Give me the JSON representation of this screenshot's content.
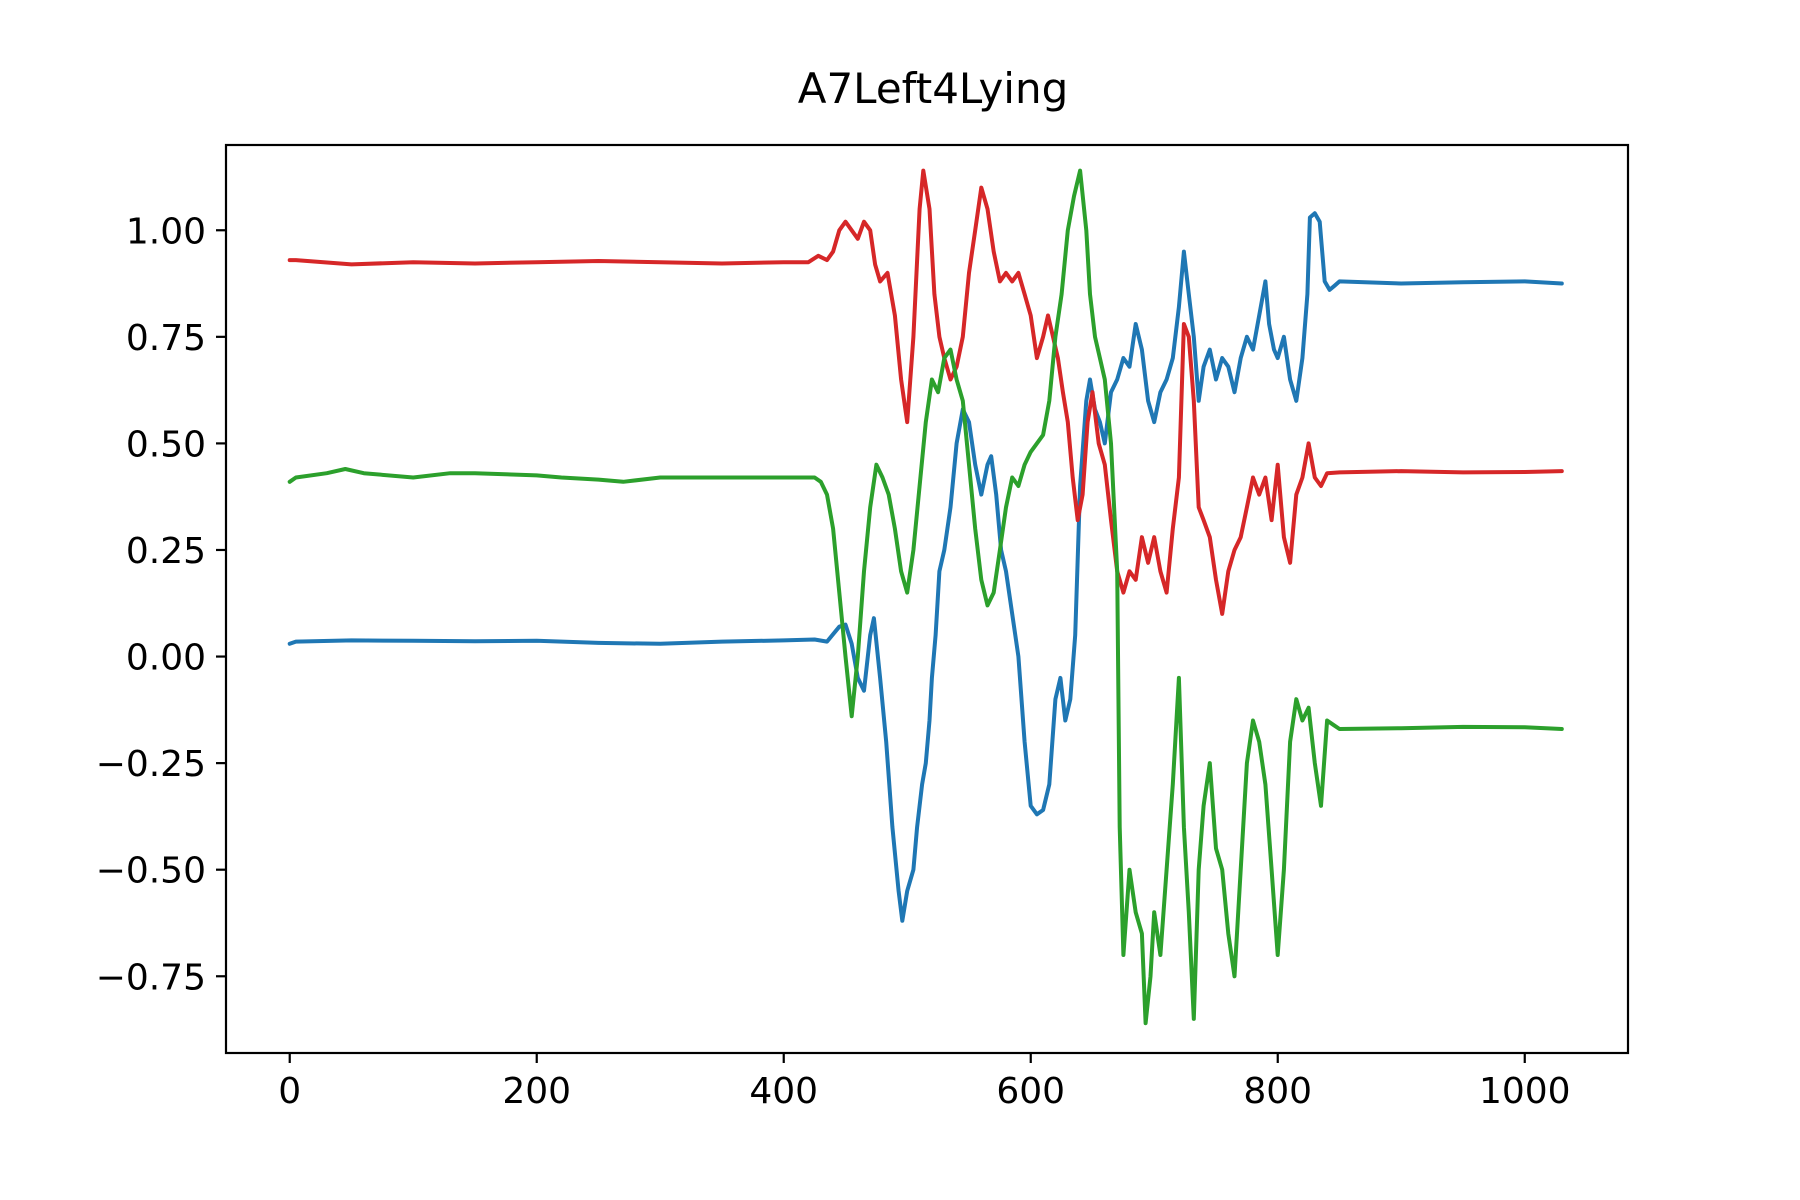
{
  "chart_data": {
    "type": "line",
    "title": "A7Left4Lying",
    "xlabel": "",
    "ylabel": "",
    "xlim": [
      -51.6,
      1083.6
    ],
    "ylim": [
      -0.93,
      1.2
    ],
    "xticks": [
      0,
      200,
      400,
      600,
      800,
      1000
    ],
    "xtick_labels": [
      "0",
      "200",
      "400",
      "600",
      "800",
      "1000"
    ],
    "yticks": [
      1.0,
      0.75,
      0.5,
      0.25,
      0.0,
      -0.25,
      -0.5,
      -0.75
    ],
    "ytick_labels": [
      "1.00",
      "0.75",
      "0.50",
      "0.25",
      "0.00",
      "−0.25",
      "−0.50",
      "−0.75"
    ],
    "grid": false,
    "series": [
      {
        "color": "#1f77b4",
        "points": [
          [
            0,
            0.03
          ],
          [
            5,
            0.035
          ],
          [
            50,
            0.038
          ],
          [
            100,
            0.037
          ],
          [
            150,
            0.036
          ],
          [
            200,
            0.037
          ],
          [
            250,
            0.032
          ],
          [
            300,
            0.03
          ],
          [
            350,
            0.035
          ],
          [
            400,
            0.038
          ],
          [
            425,
            0.04
          ],
          [
            435,
            0.035
          ],
          [
            445,
            0.07
          ],
          [
            450,
            0.075
          ],
          [
            455,
            0.03
          ],
          [
            460,
            -0.05
          ],
          [
            465,
            -0.08
          ],
          [
            470,
            0.05
          ],
          [
            473,
            0.09
          ],
          [
            478,
            -0.05
          ],
          [
            483,
            -0.2
          ],
          [
            488,
            -0.4
          ],
          [
            493,
            -0.55
          ],
          [
            496,
            -0.62
          ],
          [
            500,
            -0.55
          ],
          [
            505,
            -0.5
          ],
          [
            508,
            -0.4
          ],
          [
            512,
            -0.3
          ],
          [
            515,
            -0.25
          ],
          [
            518,
            -0.15
          ],
          [
            520,
            -0.05
          ],
          [
            523,
            0.05
          ],
          [
            526,
            0.2
          ],
          [
            530,
            0.25
          ],
          [
            535,
            0.35
          ],
          [
            540,
            0.5
          ],
          [
            545,
            0.58
          ],
          [
            550,
            0.55
          ],
          [
            555,
            0.45
          ],
          [
            560,
            0.38
          ],
          [
            565,
            0.45
          ],
          [
            568,
            0.47
          ],
          [
            572,
            0.38
          ],
          [
            576,
            0.25
          ],
          [
            580,
            0.2
          ],
          [
            585,
            0.1
          ],
          [
            590,
            0.0
          ],
          [
            595,
            -0.2
          ],
          [
            600,
            -0.35
          ],
          [
            605,
            -0.37
          ],
          [
            610,
            -0.36
          ],
          [
            615,
            -0.3
          ],
          [
            620,
            -0.1
          ],
          [
            624,
            -0.05
          ],
          [
            628,
            -0.15
          ],
          [
            632,
            -0.1
          ],
          [
            636,
            0.05
          ],
          [
            640,
            0.4
          ],
          [
            645,
            0.6
          ],
          [
            648,
            0.65
          ],
          [
            652,
            0.58
          ],
          [
            656,
            0.55
          ],
          [
            660,
            0.5
          ],
          [
            665,
            0.62
          ],
          [
            670,
            0.65
          ],
          [
            675,
            0.7
          ],
          [
            680,
            0.68
          ],
          [
            685,
            0.78
          ],
          [
            690,
            0.72
          ],
          [
            695,
            0.6
          ],
          [
            700,
            0.55
          ],
          [
            705,
            0.62
          ],
          [
            710,
            0.65
          ],
          [
            715,
            0.7
          ],
          [
            720,
            0.82
          ],
          [
            724,
            0.95
          ],
          [
            728,
            0.85
          ],
          [
            732,
            0.75
          ],
          [
            736,
            0.6
          ],
          [
            740,
            0.68
          ],
          [
            745,
            0.72
          ],
          [
            750,
            0.65
          ],
          [
            755,
            0.7
          ],
          [
            760,
            0.68
          ],
          [
            765,
            0.62
          ],
          [
            770,
            0.7
          ],
          [
            775,
            0.75
          ],
          [
            780,
            0.72
          ],
          [
            785,
            0.8
          ],
          [
            790,
            0.88
          ],
          [
            793,
            0.78
          ],
          [
            797,
            0.72
          ],
          [
            800,
            0.7
          ],
          [
            805,
            0.75
          ],
          [
            810,
            0.65
          ],
          [
            815,
            0.6
          ],
          [
            820,
            0.7
          ],
          [
            824,
            0.85
          ],
          [
            826,
            1.03
          ],
          [
            830,
            1.04
          ],
          [
            834,
            1.02
          ],
          [
            838,
            0.88
          ],
          [
            842,
            0.86
          ],
          [
            846,
            0.87
          ],
          [
            850,
            0.88
          ],
          [
            900,
            0.875
          ],
          [
            950,
            0.878
          ],
          [
            1000,
            0.88
          ],
          [
            1030,
            0.875
          ]
        ]
      },
      {
        "color": "#d62728",
        "points": [
          [
            0,
            0.93
          ],
          [
            5,
            0.93
          ],
          [
            50,
            0.92
          ],
          [
            100,
            0.925
          ],
          [
            150,
            0.922
          ],
          [
            200,
            0.925
          ],
          [
            250,
            0.928
          ],
          [
            300,
            0.925
          ],
          [
            350,
            0.922
          ],
          [
            400,
            0.925
          ],
          [
            420,
            0.925
          ],
          [
            428,
            0.94
          ],
          [
            435,
            0.93
          ],
          [
            440,
            0.95
          ],
          [
            445,
            1.0
          ],
          [
            450,
            1.02
          ],
          [
            455,
            1.0
          ],
          [
            460,
            0.98
          ],
          [
            465,
            1.02
          ],
          [
            470,
            1.0
          ],
          [
            474,
            0.92
          ],
          [
            478,
            0.88
          ],
          [
            484,
            0.9
          ],
          [
            490,
            0.8
          ],
          [
            495,
            0.65
          ],
          [
            500,
            0.55
          ],
          [
            505,
            0.75
          ],
          [
            510,
            1.05
          ],
          [
            513,
            1.14
          ],
          [
            518,
            1.05
          ],
          [
            522,
            0.85
          ],
          [
            526,
            0.75
          ],
          [
            530,
            0.7
          ],
          [
            535,
            0.65
          ],
          [
            540,
            0.68
          ],
          [
            545,
            0.75
          ],
          [
            550,
            0.9
          ],
          [
            555,
            1.0
          ],
          [
            560,
            1.1
          ],
          [
            565,
            1.05
          ],
          [
            570,
            0.95
          ],
          [
            575,
            0.88
          ],
          [
            580,
            0.9
          ],
          [
            585,
            0.88
          ],
          [
            590,
            0.9
          ],
          [
            595,
            0.85
          ],
          [
            600,
            0.8
          ],
          [
            605,
            0.7
          ],
          [
            610,
            0.75
          ],
          [
            614,
            0.8
          ],
          [
            618,
            0.75
          ],
          [
            622,
            0.7
          ],
          [
            626,
            0.62
          ],
          [
            630,
            0.55
          ],
          [
            634,
            0.42
          ],
          [
            638,
            0.32
          ],
          [
            642,
            0.38
          ],
          [
            646,
            0.55
          ],
          [
            650,
            0.62
          ],
          [
            655,
            0.5
          ],
          [
            660,
            0.45
          ],
          [
            665,
            0.32
          ],
          [
            670,
            0.2
          ],
          [
            675,
            0.15
          ],
          [
            680,
            0.2
          ],
          [
            685,
            0.18
          ],
          [
            690,
            0.28
          ],
          [
            695,
            0.22
          ],
          [
            700,
            0.28
          ],
          [
            705,
            0.2
          ],
          [
            710,
            0.15
          ],
          [
            715,
            0.3
          ],
          [
            720,
            0.42
          ],
          [
            724,
            0.78
          ],
          [
            728,
            0.75
          ],
          [
            732,
            0.6
          ],
          [
            736,
            0.35
          ],
          [
            740,
            0.32
          ],
          [
            745,
            0.28
          ],
          [
            750,
            0.18
          ],
          [
            755,
            0.1
          ],
          [
            760,
            0.2
          ],
          [
            765,
            0.25
          ],
          [
            770,
            0.28
          ],
          [
            775,
            0.35
          ],
          [
            780,
            0.42
          ],
          [
            785,
            0.38
          ],
          [
            790,
            0.42
          ],
          [
            795,
            0.32
          ],
          [
            800,
            0.45
          ],
          [
            805,
            0.28
          ],
          [
            810,
            0.22
          ],
          [
            815,
            0.38
          ],
          [
            820,
            0.42
          ],
          [
            825,
            0.5
          ],
          [
            830,
            0.42
          ],
          [
            835,
            0.4
          ],
          [
            840,
            0.43
          ],
          [
            850,
            0.432
          ],
          [
            900,
            0.435
          ],
          [
            950,
            0.432
          ],
          [
            1000,
            0.433
          ],
          [
            1030,
            0.435
          ]
        ]
      },
      {
        "color": "#2ca02c",
        "points": [
          [
            0,
            0.41
          ],
          [
            5,
            0.42
          ],
          [
            30,
            0.43
          ],
          [
            45,
            0.44
          ],
          [
            60,
            0.43
          ],
          [
            100,
            0.42
          ],
          [
            130,
            0.43
          ],
          [
            150,
            0.43
          ],
          [
            200,
            0.425
          ],
          [
            220,
            0.42
          ],
          [
            250,
            0.415
          ],
          [
            270,
            0.41
          ],
          [
            300,
            0.42
          ],
          [
            350,
            0.42
          ],
          [
            400,
            0.42
          ],
          [
            425,
            0.42
          ],
          [
            430,
            0.41
          ],
          [
            435,
            0.38
          ],
          [
            440,
            0.3
          ],
          [
            445,
            0.15
          ],
          [
            450,
            0.0
          ],
          [
            455,
            -0.14
          ],
          [
            460,
            0.0
          ],
          [
            465,
            0.2
          ],
          [
            470,
            0.35
          ],
          [
            475,
            0.45
          ],
          [
            480,
            0.42
          ],
          [
            485,
            0.38
          ],
          [
            490,
            0.3
          ],
          [
            495,
            0.2
          ],
          [
            500,
            0.15
          ],
          [
            505,
            0.25
          ],
          [
            510,
            0.4
          ],
          [
            515,
            0.55
          ],
          [
            520,
            0.65
          ],
          [
            525,
            0.62
          ],
          [
            530,
            0.7
          ],
          [
            535,
            0.72
          ],
          [
            540,
            0.65
          ],
          [
            545,
            0.6
          ],
          [
            550,
            0.45
          ],
          [
            555,
            0.3
          ],
          [
            560,
            0.18
          ],
          [
            565,
            0.12
          ],
          [
            570,
            0.15
          ],
          [
            575,
            0.25
          ],
          [
            580,
            0.35
          ],
          [
            585,
            0.42
          ],
          [
            590,
            0.4
          ],
          [
            595,
            0.45
          ],
          [
            600,
            0.48
          ],
          [
            605,
            0.5
          ],
          [
            610,
            0.52
          ],
          [
            615,
            0.6
          ],
          [
            620,
            0.75
          ],
          [
            625,
            0.85
          ],
          [
            630,
            1.0
          ],
          [
            635,
            1.08
          ],
          [
            640,
            1.14
          ],
          [
            645,
            1.0
          ],
          [
            648,
            0.85
          ],
          [
            652,
            0.75
          ],
          [
            656,
            0.7
          ],
          [
            660,
            0.65
          ],
          [
            665,
            0.5
          ],
          [
            670,
            0.2
          ],
          [
            672,
            -0.4
          ],
          [
            675,
            -0.7
          ],
          [
            680,
            -0.5
          ],
          [
            685,
            -0.6
          ],
          [
            690,
            -0.65
          ],
          [
            693,
            -0.86
          ],
          [
            697,
            -0.75
          ],
          [
            700,
            -0.6
          ],
          [
            705,
            -0.7
          ],
          [
            710,
            -0.5
          ],
          [
            715,
            -0.3
          ],
          [
            720,
            -0.05
          ],
          [
            724,
            -0.4
          ],
          [
            728,
            -0.6
          ],
          [
            732,
            -0.85
          ],
          [
            736,
            -0.5
          ],
          [
            740,
            -0.35
          ],
          [
            745,
            -0.25
          ],
          [
            750,
            -0.45
          ],
          [
            755,
            -0.5
          ],
          [
            760,
            -0.65
          ],
          [
            765,
            -0.75
          ],
          [
            770,
            -0.5
          ],
          [
            775,
            -0.25
          ],
          [
            780,
            -0.15
          ],
          [
            785,
            -0.2
          ],
          [
            790,
            -0.3
          ],
          [
            795,
            -0.5
          ],
          [
            800,
            -0.7
          ],
          [
            805,
            -0.5
          ],
          [
            810,
            -0.2
          ],
          [
            815,
            -0.1
          ],
          [
            820,
            -0.15
          ],
          [
            825,
            -0.12
          ],
          [
            830,
            -0.25
          ],
          [
            835,
            -0.35
          ],
          [
            840,
            -0.15
          ],
          [
            845,
            -0.16
          ],
          [
            850,
            -0.17
          ],
          [
            900,
            -0.168
          ],
          [
            950,
            -0.165
          ],
          [
            1000,
            -0.166
          ],
          [
            1030,
            -0.17
          ]
        ]
      }
    ]
  }
}
